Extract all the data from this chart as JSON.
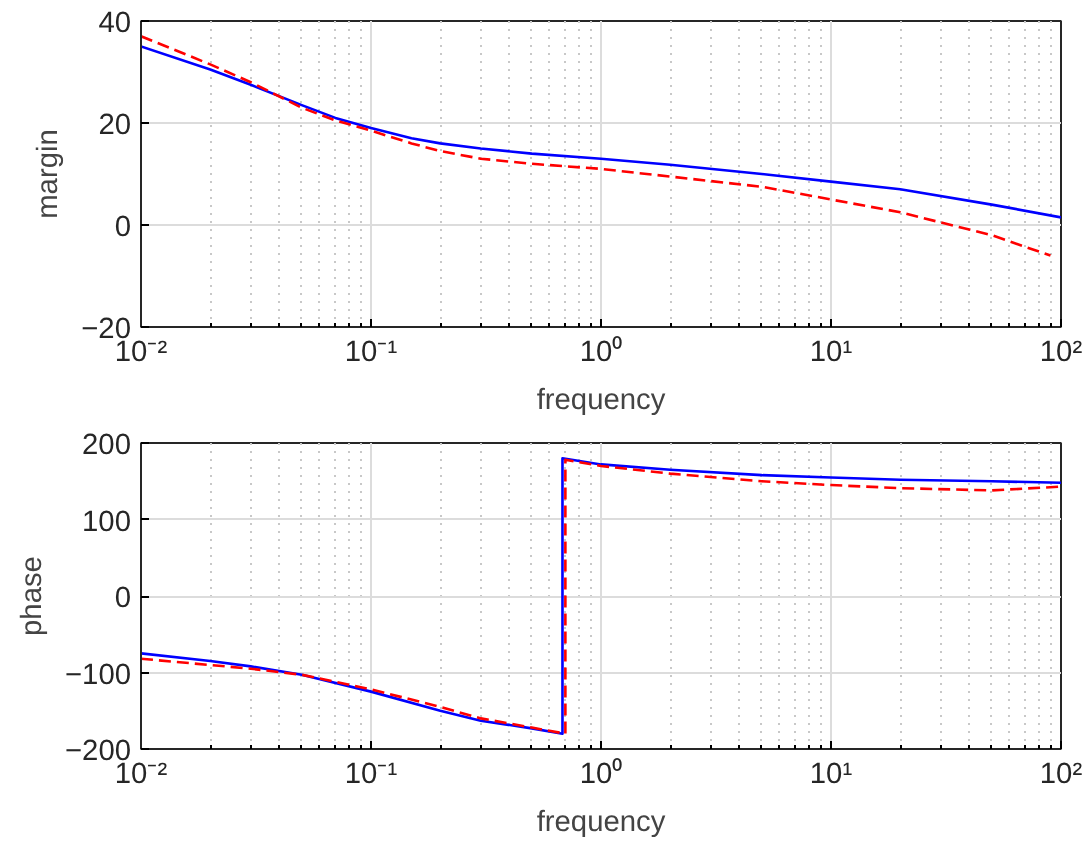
{
  "chart_data": [
    {
      "type": "line",
      "xlabel": "frequency",
      "ylabel": "margin",
      "log": "x",
      "grid": true,
      "xlim": [
        0.01,
        100
      ],
      "ylim": [
        -20,
        40
      ],
      "xticks": [
        {
          "value": 0.01,
          "label": "10⁻²"
        },
        {
          "value": 0.1,
          "label": "10⁻¹"
        },
        {
          "value": 1,
          "label": "10⁰"
        },
        {
          "value": 10,
          "label": "10¹"
        },
        {
          "value": 100,
          "label": "10²"
        }
      ],
      "yticks": [
        -20,
        0,
        20,
        40
      ],
      "series": [
        {
          "color": "#0000ff",
          "line_style": "solid",
          "x": [
            0.01,
            0.02,
            0.03,
            0.05,
            0.07,
            0.1,
            0.15,
            0.2,
            0.3,
            0.5,
            1,
            2,
            5,
            10,
            20,
            50,
            100
          ],
          "values": [
            35,
            30.5,
            27.5,
            23.5,
            21,
            19,
            17,
            16,
            15,
            14,
            13,
            11.8,
            10,
            8.5,
            7,
            4,
            1.5
          ]
        },
        {
          "color": "#ff0000",
          "line_style": "dashed",
          "x": [
            0.01,
            0.02,
            0.03,
            0.05,
            0.07,
            0.1,
            0.15,
            0.2,
            0.3,
            0.5,
            1,
            2,
            5,
            10,
            20,
            30,
            50,
            90
          ],
          "values": [
            37,
            31.5,
            28,
            23,
            20.5,
            18.5,
            16,
            14.5,
            13,
            12,
            11,
            9.5,
            7.5,
            5,
            2.5,
            0.5,
            -2,
            -6
          ]
        }
      ]
    },
    {
      "type": "line",
      "xlabel": "frequency",
      "ylabel": "phase",
      "log": "x",
      "grid": true,
      "xlim": [
        0.01,
        100
      ],
      "ylim": [
        -200,
        200
      ],
      "xticks": [
        {
          "value": 0.01,
          "label": "10⁻²"
        },
        {
          "value": 0.1,
          "label": "10⁻¹"
        },
        {
          "value": 1,
          "label": "10⁰"
        },
        {
          "value": 10,
          "label": "10¹"
        },
        {
          "value": 100,
          "label": "10²"
        }
      ],
      "yticks": [
        -200,
        -100,
        0,
        100,
        200
      ],
      "series": [
        {
          "color": "#0000ff",
          "line_style": "solid",
          "x": [
            0.01,
            0.02,
            0.03,
            0.05,
            0.1,
            0.2,
            0.3,
            0.5,
            0.68,
            0.68,
            1,
            2,
            5,
            10,
            20,
            50,
            100
          ],
          "values": [
            -75,
            -85,
            -92,
            -103,
            -125,
            -150,
            -163,
            -173,
            -180,
            180,
            172,
            165,
            158,
            155,
            152,
            150,
            148
          ]
        },
        {
          "color": "#ff0000",
          "line_style": "dashed",
          "x": [
            0.01,
            0.03,
            0.05,
            0.1,
            0.2,
            0.3,
            0.5,
            0.7,
            0.7,
            1,
            2,
            5,
            10,
            20,
            50,
            100
          ],
          "values": [
            -82,
            -95,
            -103,
            -122,
            -145,
            -160,
            -172,
            -180,
            178,
            170,
            160,
            150,
            145,
            141,
            138,
            143
          ]
        }
      ]
    }
  ]
}
